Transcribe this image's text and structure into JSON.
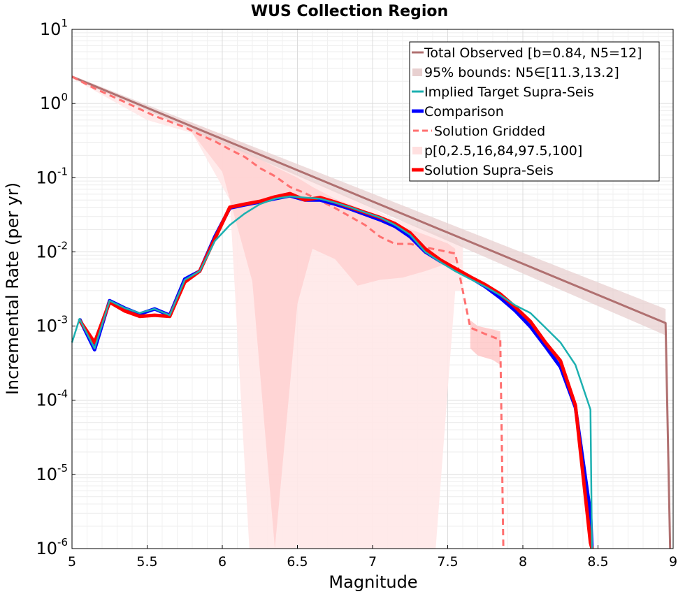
{
  "chart_data": {
    "type": "line",
    "title": "WUS Collection Region",
    "xlabel": "Magnitude",
    "ylabel": "Incremental Rate (per yr)",
    "xlim": [
      5,
      9
    ],
    "ylim": [
      1e-06,
      10
    ],
    "yscale": "log",
    "grid": true,
    "legend_position": "top-right",
    "xticks": [
      "5",
      "5.5",
      "6",
      "6.5",
      "7",
      "7.5",
      "8",
      "8.5",
      "9"
    ],
    "yticks": [
      {
        "base": "10",
        "exp": "1"
      },
      {
        "base": "10",
        "exp": "0"
      },
      {
        "base": "10",
        "exp": "-1"
      },
      {
        "base": "10",
        "exp": "-2"
      },
      {
        "base": "10",
        "exp": "-3"
      },
      {
        "base": "10",
        "exp": "-4"
      },
      {
        "base": "10",
        "exp": "-5"
      },
      {
        "base": "10",
        "exp": "-6"
      }
    ],
    "legend": [
      {
        "label": "Total Observed [b=0.84, N5=12]",
        "style": "line",
        "color": "#b07070"
      },
      {
        "label": "95% bounds: N5∈[11.3,13.2]",
        "style": "band",
        "color": "#e8d0d0"
      },
      {
        "label": "Implied Target Supra-Seis",
        "style": "line",
        "color": "#1cb0b0"
      },
      {
        "label": "Comparison",
        "style": "thick",
        "color": "#0000ff"
      },
      {
        "label": "Solution Gridded",
        "style": "dashed",
        "color": "#ff7070"
      },
      {
        "label": "p[0,2.5,16,84,97.5,100]",
        "style": "band",
        "color": "#ffe0e0"
      },
      {
        "label": "Solution Supra-Seis",
        "style": "thick",
        "color": "#ff0000"
      }
    ],
    "series": {
      "total_observed": {
        "color": "#b07070",
        "x": [
          5.0,
          8.95,
          8.95,
          8.98
        ],
        "y": [
          2.3,
          0.0011,
          0.0011,
          1e-06
        ]
      },
      "bounds95": {
        "color": "#e8d0d0",
        "x": [
          5.0,
          8.95
        ],
        "lower": [
          2.2,
          0.00075
        ],
        "upper": [
          2.4,
          0.0017
        ]
      },
      "implied_target": {
        "color": "#1cb0b0",
        "x": [
          5.0,
          5.05,
          5.15,
          5.25,
          5.35,
          5.45,
          5.55,
          5.65,
          5.75,
          5.85,
          5.95,
          6.05,
          6.15,
          6.25,
          6.35,
          6.45,
          6.55,
          6.65,
          6.75,
          6.85,
          6.95,
          7.05,
          7.15,
          7.25,
          7.35,
          7.45,
          7.55,
          7.65,
          7.75,
          7.85,
          7.95,
          8.05,
          8.15,
          8.25,
          8.35,
          8.45,
          8.46
        ],
        "y": [
          0.0006,
          0.00125,
          0.0005,
          0.0022,
          0.00175,
          0.0015,
          0.0017,
          0.0014,
          0.0042,
          0.0055,
          0.014,
          0.023,
          0.033,
          0.044,
          0.052,
          0.056,
          0.054,
          0.052,
          0.046,
          0.04,
          0.034,
          0.029,
          0.023,
          0.017,
          0.01,
          0.0073,
          0.0055,
          0.0043,
          0.0034,
          0.0026,
          0.0019,
          0.0015,
          0.00095,
          0.0006,
          0.0003,
          7.5e-05,
          1e-06
        ]
      },
      "comparison": {
        "color": "#0000ff",
        "x": [
          5.05,
          5.15,
          5.25,
          5.35,
          5.45,
          5.55,
          5.65,
          5.75,
          5.85,
          5.95,
          6.05,
          6.15,
          6.25,
          6.35,
          6.45,
          6.55,
          6.65,
          6.75,
          6.85,
          6.95,
          7.05,
          7.15,
          7.25,
          7.35,
          7.45,
          7.55,
          7.65,
          7.75,
          7.85,
          7.95,
          8.05,
          8.15,
          8.25,
          8.35,
          8.45,
          8.46
        ],
        "y": [
          0.00125,
          0.00048,
          0.0022,
          0.00175,
          0.00145,
          0.0017,
          0.0014,
          0.0043,
          0.0055,
          0.016,
          0.039,
          0.043,
          0.047,
          0.052,
          0.057,
          0.05,
          0.05,
          0.044,
          0.038,
          0.032,
          0.027,
          0.022,
          0.016,
          0.01,
          0.0075,
          0.0058,
          0.0045,
          0.0034,
          0.0024,
          0.0016,
          0.00098,
          0.00053,
          0.00028,
          8e-05,
          3e-06,
          1e-06
        ]
      },
      "solution_gridded": {
        "color": "#ff7070",
        "x": [
          5.0,
          5.15,
          5.35,
          5.55,
          5.75,
          5.85,
          5.95,
          6.05,
          6.15,
          6.25,
          6.35,
          6.45,
          6.55,
          6.65,
          6.75,
          6.85,
          6.95,
          7.05,
          7.15,
          7.25,
          7.35,
          7.45,
          7.55,
          7.65,
          7.75,
          7.85,
          7.85,
          7.87
        ],
        "y": [
          2.3,
          1.6,
          1.05,
          0.68,
          0.48,
          0.38,
          0.31,
          0.24,
          0.19,
          0.135,
          0.105,
          0.075,
          0.062,
          0.049,
          0.039,
          0.03,
          0.023,
          0.016,
          0.0128,
          0.0128,
          0.0115,
          0.0105,
          0.0095,
          0.00095,
          0.00078,
          0.00065,
          0.00065,
          1e-06
        ]
      },
      "gridded_band_outer": {
        "color": "#ffe8e8",
        "x": [
          5.0,
          5.5,
          5.8,
          6.05,
          6.18,
          6.35,
          6.5,
          6.7,
          6.9,
          7.1,
          7.3,
          7.42,
          7.55,
          7.6
        ],
        "lower": [
          2.2,
          0.6,
          0.4,
          0.05,
          1e-06,
          1e-06,
          1e-06,
          1e-06,
          1e-06,
          1e-06,
          1e-06,
          1e-06,
          0.003,
          0.003
        ],
        "upper": [
          2.4,
          0.8,
          0.55,
          0.35,
          0.27,
          0.18,
          0.11,
          0.075,
          0.05,
          0.03,
          0.022,
          0.018,
          0.015,
          0.012
        ]
      },
      "gridded_band_inner": {
        "color": "#ffcfcf",
        "x": [
          5.8,
          6.0,
          6.2,
          6.35,
          6.5,
          6.6,
          6.75,
          6.9,
          7.05,
          7.2,
          7.35,
          7.5,
          7.55
        ],
        "lower": [
          0.4,
          0.12,
          0.004,
          1e-06,
          0.002,
          0.011,
          0.008,
          0.0035,
          0.0042,
          0.0045,
          0.0055,
          0.007,
          0.007
        ],
        "upper": [
          0.5,
          0.33,
          0.2,
          0.14,
          0.1,
          0.075,
          0.052,
          0.04,
          0.028,
          0.022,
          0.017,
          0.013,
          0.011
        ]
      },
      "gridded_tail_band": {
        "color": "#ffbcbc",
        "x": [
          7.65,
          7.7,
          7.8,
          7.85
        ],
        "lower": [
          0.0005,
          0.0004,
          0.00035,
          0.0003
        ],
        "upper": [
          0.0012,
          0.001,
          0.0009,
          0.00085
        ]
      },
      "solution_supra": {
        "color": "#ff0000",
        "x": [
          5.05,
          5.15,
          5.25,
          5.35,
          5.45,
          5.55,
          5.65,
          5.75,
          5.85,
          5.95,
          6.05,
          6.15,
          6.25,
          6.35,
          6.45,
          6.55,
          6.65,
          6.75,
          6.85,
          6.95,
          7.05,
          7.15,
          7.25,
          7.35,
          7.45,
          7.55,
          7.65,
          7.75,
          7.85,
          7.95,
          8.05,
          8.15,
          8.25,
          8.35,
          8.45,
          8.46
        ],
        "y": [
          0.0012,
          0.0006,
          0.0021,
          0.0016,
          0.00135,
          0.0014,
          0.00135,
          0.0039,
          0.0055,
          0.015,
          0.04,
          0.044,
          0.048,
          0.055,
          0.061,
          0.05,
          0.054,
          0.047,
          0.04,
          0.034,
          0.029,
          0.024,
          0.018,
          0.011,
          0.0078,
          0.006,
          0.0046,
          0.0036,
          0.0027,
          0.0018,
          0.00115,
          0.0006,
          0.00034,
          8.5e-05,
          1.2e-06,
          1e-06
        ]
      }
    }
  }
}
